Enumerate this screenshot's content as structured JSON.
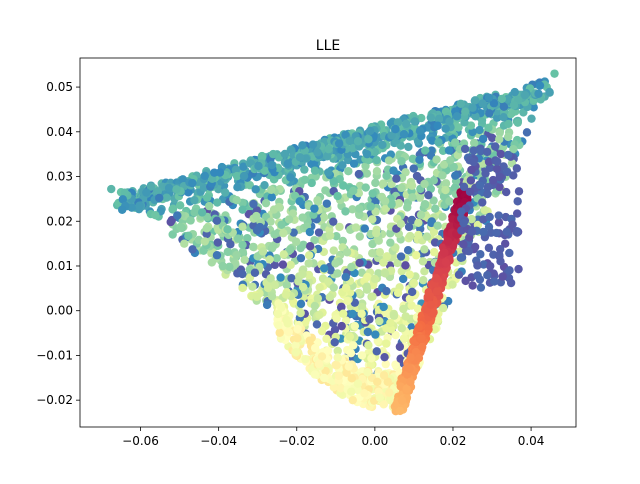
{
  "chart_data": {
    "type": "scatter",
    "title": "LLE",
    "xlabel": "",
    "ylabel": "",
    "xlim": [
      -0.0755,
      0.0515
    ],
    "ylim": [
      -0.026,
      0.0565
    ],
    "x_ticks": [
      -0.06,
      -0.04,
      -0.02,
      0.0,
      0.02,
      0.04
    ],
    "x_tick_labels": [
      "−0.06",
      "−0.04",
      "−0.02",
      "0.00",
      "0.02",
      "0.04"
    ],
    "y_ticks": [
      -0.02,
      -0.01,
      0.0,
      0.01,
      0.02,
      0.03,
      0.04,
      0.05
    ],
    "y_tick_labels": [
      "−0.02",
      "−0.01",
      "0.00",
      "0.01",
      "0.02",
      "0.03",
      "0.04",
      "0.05"
    ],
    "grid": false,
    "legend": "none",
    "colormap": "Spectral",
    "description_of_shape": "triangular point cloud: top edge from (-0.065,0.026) to (0.046,0.053), inner funnel converging to (0.005,-0.022), and a dense red arm rising from (0.005,-0.022) to (0.023,0.026)",
    "series": [
      {
        "points": [
          {
            "x": -0.0675,
            "y": 0.0272,
            "c": 0.82
          },
          {
            "x": -0.065,
            "y": 0.0265,
            "c": 0.8
          },
          {
            "x": -0.06,
            "y": 0.0255,
            "c": 0.78
          },
          {
            "x": -0.055,
            "y": 0.0262,
            "c": 0.8
          },
          {
            "x": -0.05,
            "y": 0.027,
            "c": 0.82
          },
          {
            "x": -0.045,
            "y": 0.028,
            "c": 0.8
          },
          {
            "x": -0.04,
            "y": 0.0285,
            "c": 0.8
          },
          {
            "x": -0.035,
            "y": 0.029,
            "c": 0.85
          },
          {
            "x": -0.03,
            "y": 0.03,
            "c": 0.88
          },
          {
            "x": -0.025,
            "y": 0.031,
            "c": 0.85
          },
          {
            "x": -0.02,
            "y": 0.0325,
            "c": 0.85
          },
          {
            "x": -0.015,
            "y": 0.033,
            "c": 0.85
          },
          {
            "x": -0.01,
            "y": 0.034,
            "c": 0.88
          },
          {
            "x": -0.005,
            "y": 0.035,
            "c": 0.88
          },
          {
            "x": 0.0,
            "y": 0.036,
            "c": 0.88
          },
          {
            "x": 0.005,
            "y": 0.0375,
            "c": 0.85
          },
          {
            "x": 0.01,
            "y": 0.039,
            "c": 0.82
          },
          {
            "x": 0.015,
            "y": 0.04,
            "c": 0.82
          },
          {
            "x": 0.02,
            "y": 0.042,
            "c": 0.82
          },
          {
            "x": 0.025,
            "y": 0.044,
            "c": 0.82
          },
          {
            "x": 0.03,
            "y": 0.046,
            "c": 0.82
          },
          {
            "x": 0.035,
            "y": 0.047,
            "c": 0.8
          },
          {
            "x": 0.04,
            "y": 0.049,
            "c": 0.8
          },
          {
            "x": 0.044,
            "y": 0.05,
            "c": 0.8
          },
          {
            "x": 0.046,
            "y": 0.053,
            "c": 0.8
          }
        ]
      }
    ]
  }
}
